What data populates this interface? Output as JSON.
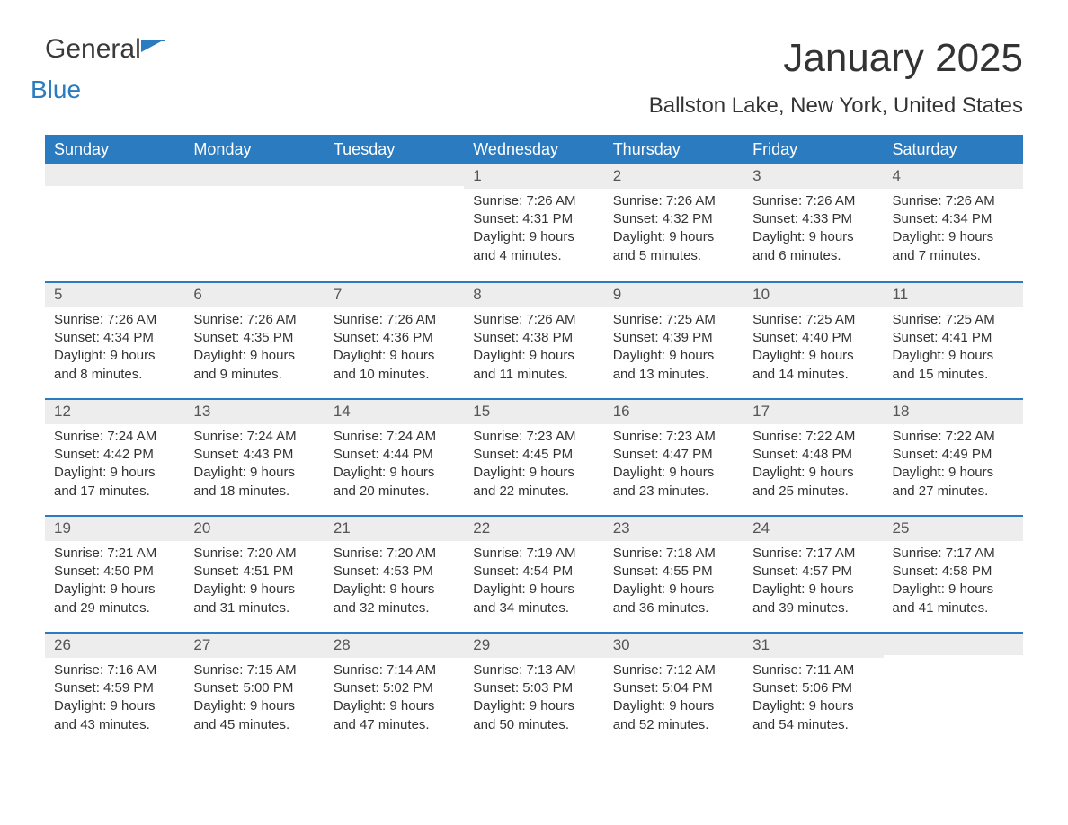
{
  "logo": {
    "text1": "General",
    "text2": "Blue"
  },
  "title": "January 2025",
  "location": "Ballston Lake, New York, United States",
  "colors": {
    "header_bg": "#2a7bbf",
    "header_text": "#ffffff",
    "daynum_bg": "#ededed",
    "divider": "#2a7bbf",
    "body_text": "#333333",
    "background": "#ffffff"
  },
  "day_names": [
    "Sunday",
    "Monday",
    "Tuesday",
    "Wednesday",
    "Thursday",
    "Friday",
    "Saturday"
  ],
  "weeks": [
    [
      null,
      null,
      null,
      {
        "n": "1",
        "sunrise": "7:26 AM",
        "sunset": "4:31 PM",
        "daylight": "9 hours and 4 minutes."
      },
      {
        "n": "2",
        "sunrise": "7:26 AM",
        "sunset": "4:32 PM",
        "daylight": "9 hours and 5 minutes."
      },
      {
        "n": "3",
        "sunrise": "7:26 AM",
        "sunset": "4:33 PM",
        "daylight": "9 hours and 6 minutes."
      },
      {
        "n": "4",
        "sunrise": "7:26 AM",
        "sunset": "4:34 PM",
        "daylight": "9 hours and 7 minutes."
      }
    ],
    [
      {
        "n": "5",
        "sunrise": "7:26 AM",
        "sunset": "4:34 PM",
        "daylight": "9 hours and 8 minutes."
      },
      {
        "n": "6",
        "sunrise": "7:26 AM",
        "sunset": "4:35 PM",
        "daylight": "9 hours and 9 minutes."
      },
      {
        "n": "7",
        "sunrise": "7:26 AM",
        "sunset": "4:36 PM",
        "daylight": "9 hours and 10 minutes."
      },
      {
        "n": "8",
        "sunrise": "7:26 AM",
        "sunset": "4:38 PM",
        "daylight": "9 hours and 11 minutes."
      },
      {
        "n": "9",
        "sunrise": "7:25 AM",
        "sunset": "4:39 PM",
        "daylight": "9 hours and 13 minutes."
      },
      {
        "n": "10",
        "sunrise": "7:25 AM",
        "sunset": "4:40 PM",
        "daylight": "9 hours and 14 minutes."
      },
      {
        "n": "11",
        "sunrise": "7:25 AM",
        "sunset": "4:41 PM",
        "daylight": "9 hours and 15 minutes."
      }
    ],
    [
      {
        "n": "12",
        "sunrise": "7:24 AM",
        "sunset": "4:42 PM",
        "daylight": "9 hours and 17 minutes."
      },
      {
        "n": "13",
        "sunrise": "7:24 AM",
        "sunset": "4:43 PM",
        "daylight": "9 hours and 18 minutes."
      },
      {
        "n": "14",
        "sunrise": "7:24 AM",
        "sunset": "4:44 PM",
        "daylight": "9 hours and 20 minutes."
      },
      {
        "n": "15",
        "sunrise": "7:23 AM",
        "sunset": "4:45 PM",
        "daylight": "9 hours and 22 minutes."
      },
      {
        "n": "16",
        "sunrise": "7:23 AM",
        "sunset": "4:47 PM",
        "daylight": "9 hours and 23 minutes."
      },
      {
        "n": "17",
        "sunrise": "7:22 AM",
        "sunset": "4:48 PM",
        "daylight": "9 hours and 25 minutes."
      },
      {
        "n": "18",
        "sunrise": "7:22 AM",
        "sunset": "4:49 PM",
        "daylight": "9 hours and 27 minutes."
      }
    ],
    [
      {
        "n": "19",
        "sunrise": "7:21 AM",
        "sunset": "4:50 PM",
        "daylight": "9 hours and 29 minutes."
      },
      {
        "n": "20",
        "sunrise": "7:20 AM",
        "sunset": "4:51 PM",
        "daylight": "9 hours and 31 minutes."
      },
      {
        "n": "21",
        "sunrise": "7:20 AM",
        "sunset": "4:53 PM",
        "daylight": "9 hours and 32 minutes."
      },
      {
        "n": "22",
        "sunrise": "7:19 AM",
        "sunset": "4:54 PM",
        "daylight": "9 hours and 34 minutes."
      },
      {
        "n": "23",
        "sunrise": "7:18 AM",
        "sunset": "4:55 PM",
        "daylight": "9 hours and 36 minutes."
      },
      {
        "n": "24",
        "sunrise": "7:17 AM",
        "sunset": "4:57 PM",
        "daylight": "9 hours and 39 minutes."
      },
      {
        "n": "25",
        "sunrise": "7:17 AM",
        "sunset": "4:58 PM",
        "daylight": "9 hours and 41 minutes."
      }
    ],
    [
      {
        "n": "26",
        "sunrise": "7:16 AM",
        "sunset": "4:59 PM",
        "daylight": "9 hours and 43 minutes."
      },
      {
        "n": "27",
        "sunrise": "7:15 AM",
        "sunset": "5:00 PM",
        "daylight": "9 hours and 45 minutes."
      },
      {
        "n": "28",
        "sunrise": "7:14 AM",
        "sunset": "5:02 PM",
        "daylight": "9 hours and 47 minutes."
      },
      {
        "n": "29",
        "sunrise": "7:13 AM",
        "sunset": "5:03 PM",
        "daylight": "9 hours and 50 minutes."
      },
      {
        "n": "30",
        "sunrise": "7:12 AM",
        "sunset": "5:04 PM",
        "daylight": "9 hours and 52 minutes."
      },
      {
        "n": "31",
        "sunrise": "7:11 AM",
        "sunset": "5:06 PM",
        "daylight": "9 hours and 54 minutes."
      },
      null
    ]
  ],
  "labels": {
    "sunrise": "Sunrise:",
    "sunset": "Sunset:",
    "daylight": "Daylight:"
  }
}
